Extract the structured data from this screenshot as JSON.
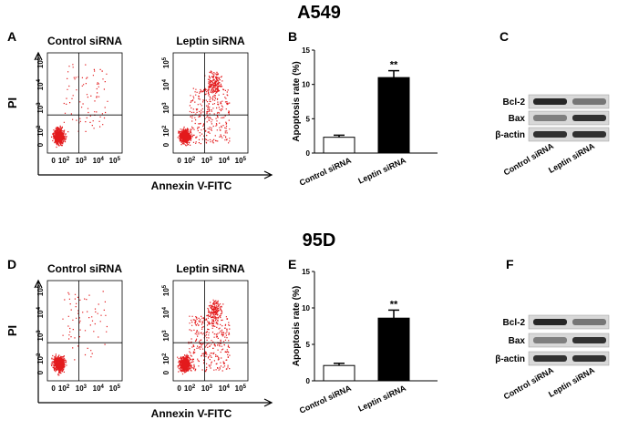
{
  "figure": {
    "panels": [
      {
        "title": "A549",
        "flow_label": "A",
        "plots": [
          "Control siRNA",
          "Leptin siRNA"
        ],
        "y_axis": "PI",
        "x_axis": "Annexin V-FITC",
        "bar_label": "B",
        "blot_label": "C",
        "blot_rows": [
          "Bcl-2",
          "Bax",
          "β-actin"
        ],
        "blot_lanes": [
          "Control siRNA",
          "Leptin siRNA"
        ]
      },
      {
        "title": "95D",
        "flow_label": "D",
        "plots": [
          "Control siRNA",
          "Leptin siRNA"
        ],
        "y_axis": "PI",
        "x_axis": "Annexin V-FITC",
        "bar_label": "E",
        "blot_label": "F",
        "blot_rows": [
          "Bcl-2",
          "Bax",
          "β-actin"
        ],
        "blot_lanes": [
          "Control siRNA",
          "Leptin siRNA"
        ]
      }
    ],
    "flow_ticks": [
      {
        "base": "0"
      },
      {
        "base": "10",
        "exp": "2"
      },
      {
        "base": "10",
        "exp": "3"
      },
      {
        "base": "10",
        "exp": "4"
      },
      {
        "base": "10",
        "exp": "5"
      }
    ]
  },
  "chart_data": [
    {
      "type": "bar",
      "y_label": "Apoptosis rate (%)",
      "categories": [
        "Control siRNA",
        "Leptin siRNA"
      ],
      "values": [
        2.3,
        11
      ],
      "errors": [
        0.3,
        1
      ],
      "colors": [
        "#ffffff",
        "#000000"
      ],
      "ylim": [
        0,
        15
      ],
      "yticks": [
        0,
        5,
        10,
        15
      ],
      "annotation": "**"
    },
    {
      "type": "bar",
      "y_label": "Apoptosis rate (%)",
      "categories": [
        "Control siRNA",
        "Leptin siRNA"
      ],
      "values": [
        2.1,
        8.6
      ],
      "errors": [
        0.3,
        1.1
      ],
      "colors": [
        "#ffffff",
        "#000000"
      ],
      "ylim": [
        0,
        15
      ],
      "yticks": [
        0,
        5,
        10,
        15
      ],
      "annotation": "**"
    }
  ]
}
